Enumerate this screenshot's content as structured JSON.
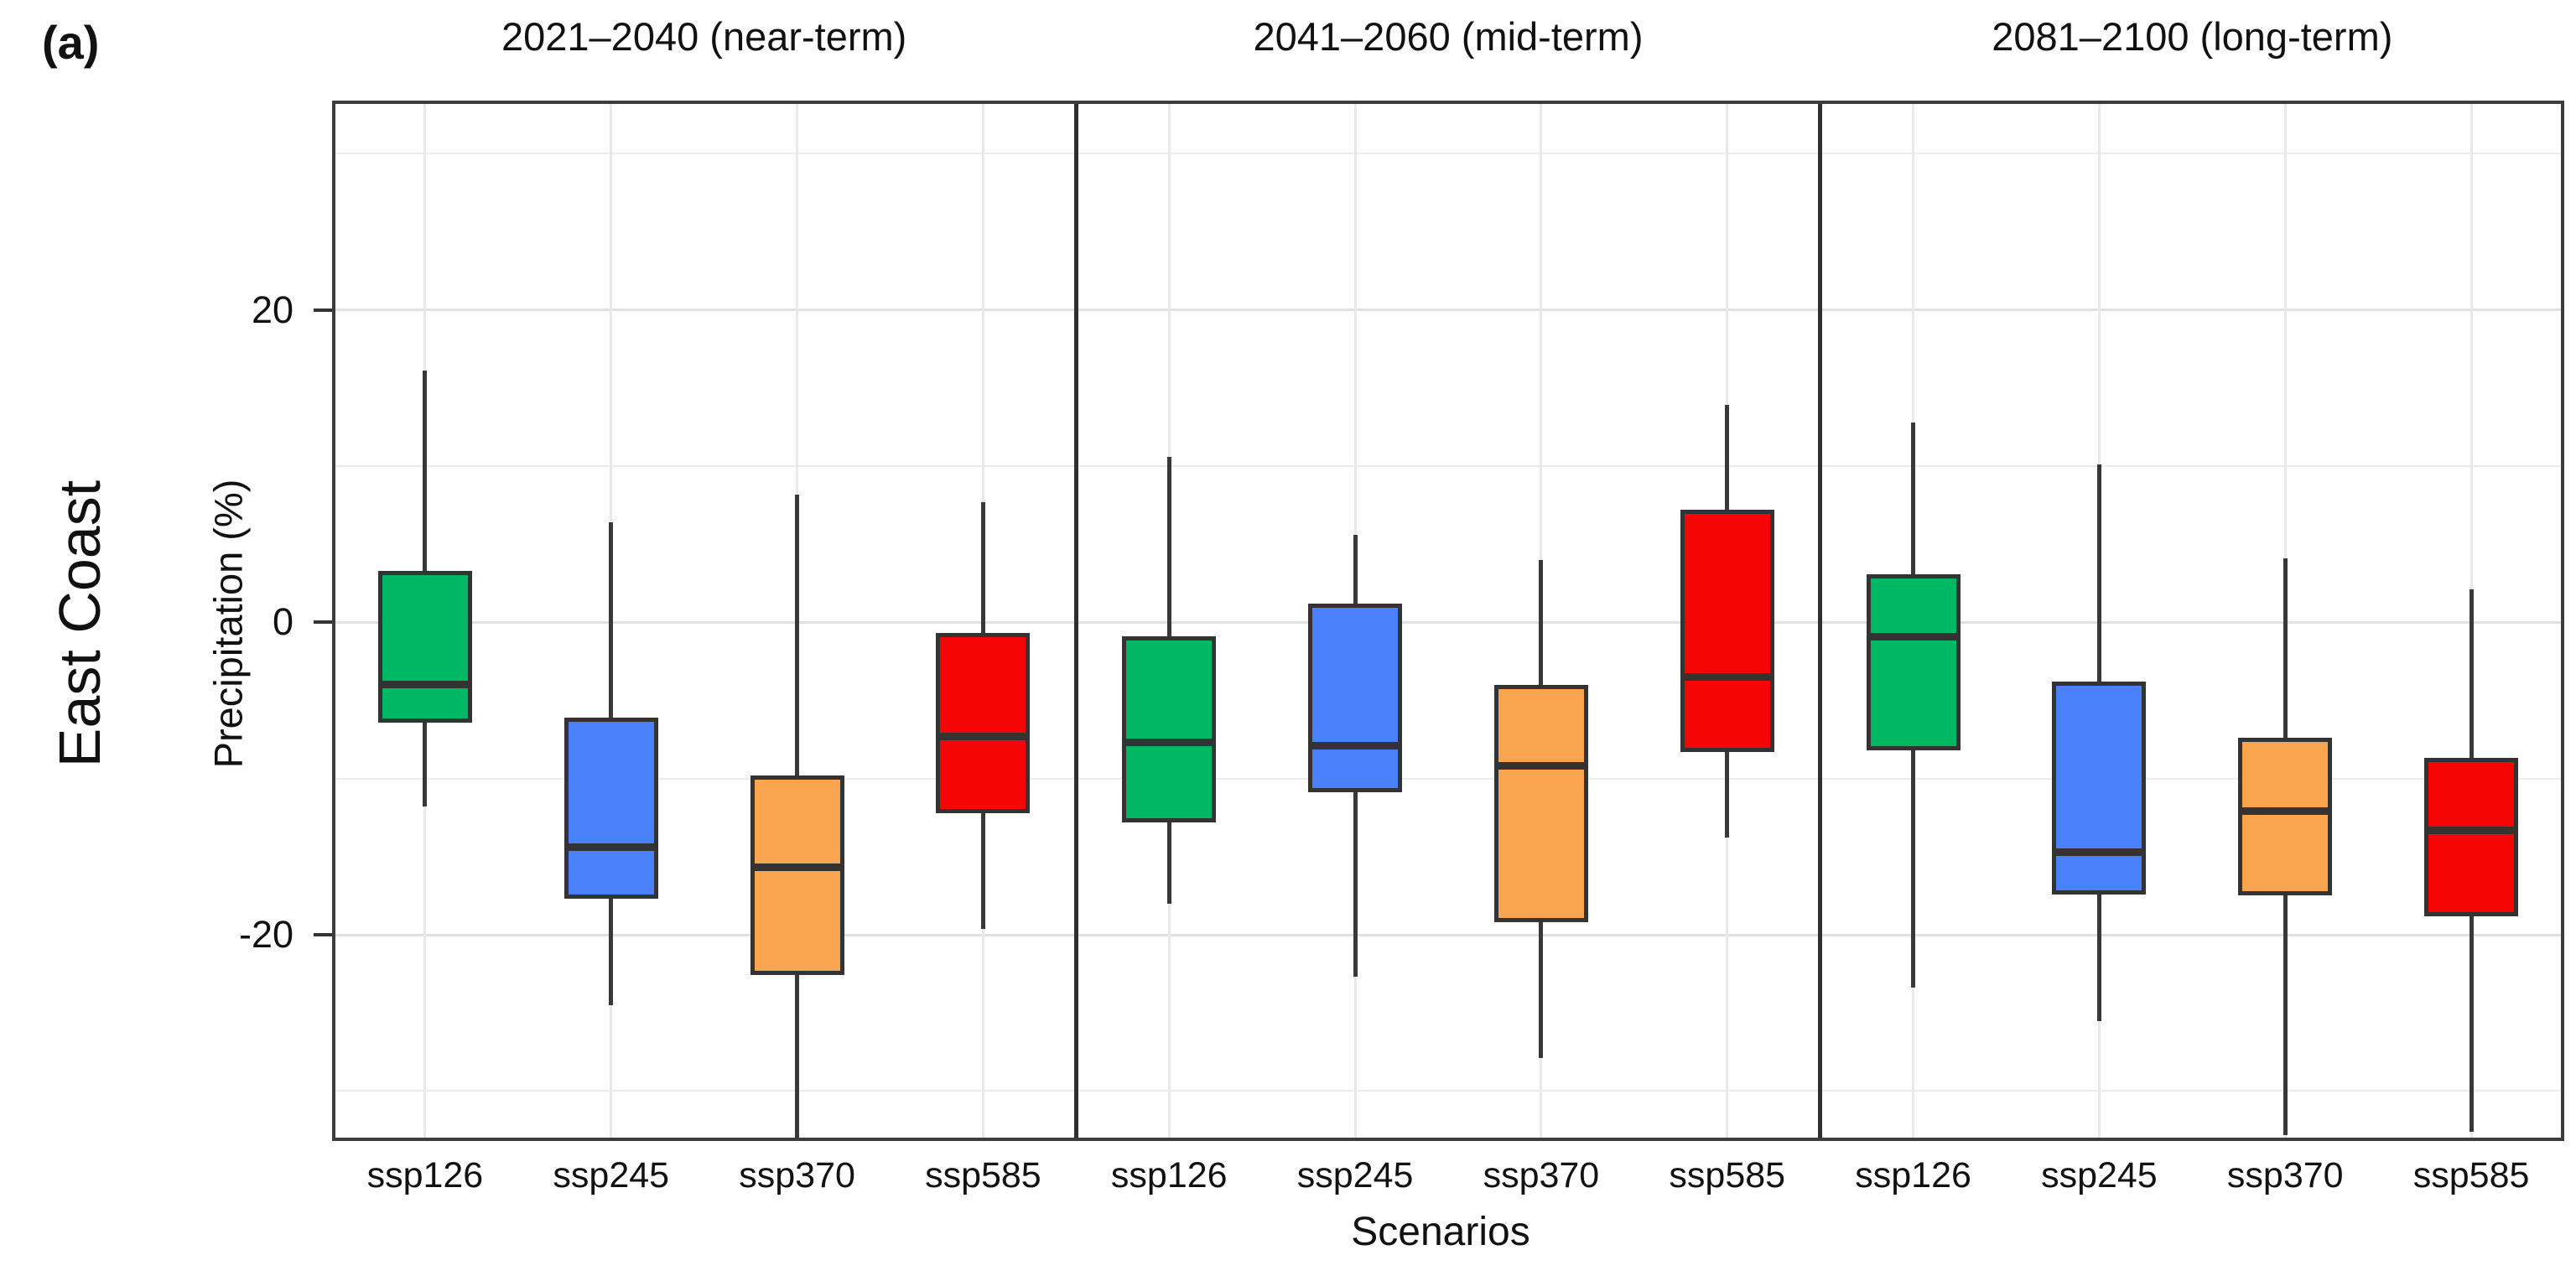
{
  "chart_data": {
    "type": "box",
    "panel_tag": "(a)",
    "row_label": "East Coast",
    "ylabel": "Precipitation (%)",
    "xlabel": "Scenarios",
    "categories": [
      "ssp126",
      "ssp245",
      "ssp370",
      "ssp585"
    ],
    "colors": {
      "ssp126": "#00B763",
      "ssp245": "#4A80F9",
      "ssp370": "#F9A44E",
      "ssp585": "#F50505"
    },
    "stroke_color": "#333333",
    "y_axis": {
      "ticks": [
        {
          "value": 20,
          "label": "20"
        },
        {
          "value": 0,
          "label": "0"
        },
        {
          "value": -20,
          "label": "-20"
        }
      ],
      "minor_gridlines": [
        30,
        10,
        -10,
        -30
      ],
      "ylim": [
        -33.2,
        33.4
      ],
      "grid": "on",
      "legend": "none"
    },
    "panels": [
      {
        "title": "2021–2040 (near-term)",
        "boxes": [
          {
            "scenario": "ssp126",
            "min": -11.8,
            "q1": -6.4,
            "median": -4.0,
            "q3": 3.3,
            "max": 16.1
          },
          {
            "scenario": "ssp245",
            "min": -24.5,
            "q1": -17.7,
            "median": -14.4,
            "q3": -6.1,
            "max": 6.4
          },
          {
            "scenario": "ssp370",
            "min": -33.0,
            "q1": -22.6,
            "median": -15.7,
            "q3": -9.8,
            "max": 8.2
          },
          {
            "scenario": "ssp585",
            "min": -19.6,
            "q1": -12.2,
            "median": -7.3,
            "q3": -0.7,
            "max": 7.7
          }
        ]
      },
      {
        "title": "2041–2060 (mid-term)",
        "boxes": [
          {
            "scenario": "ssp126",
            "min": -18.0,
            "q1": -12.8,
            "median": -7.7,
            "q3": -0.9,
            "max": 10.6
          },
          {
            "scenario": "ssp245",
            "min": -22.7,
            "q1": -10.9,
            "median": -7.9,
            "q3": 1.2,
            "max": 5.6
          },
          {
            "scenario": "ssp370",
            "min": -27.9,
            "q1": -19.2,
            "median": -9.2,
            "q3": -4.0,
            "max": 4.0
          },
          {
            "scenario": "ssp585",
            "min": -13.8,
            "q1": -8.3,
            "median": -3.5,
            "q3": 7.2,
            "max": 13.9
          }
        ]
      },
      {
        "title": "2081–2100 (long-term)",
        "boxes": [
          {
            "scenario": "ssp126",
            "min": -23.4,
            "q1": -8.2,
            "median": -0.9,
            "q3": 3.1,
            "max": 12.8
          },
          {
            "scenario": "ssp245",
            "min": -25.5,
            "q1": -17.4,
            "median": -14.7,
            "q3": -3.8,
            "max": 10.1
          },
          {
            "scenario": "ssp370",
            "min": -32.8,
            "q1": -17.5,
            "median": -12.1,
            "q3": -7.4,
            "max": 4.1
          },
          {
            "scenario": "ssp585",
            "min": -32.6,
            "q1": -18.8,
            "median": -13.3,
            "q3": -8.7,
            "max": 2.1
          }
        ]
      }
    ]
  }
}
